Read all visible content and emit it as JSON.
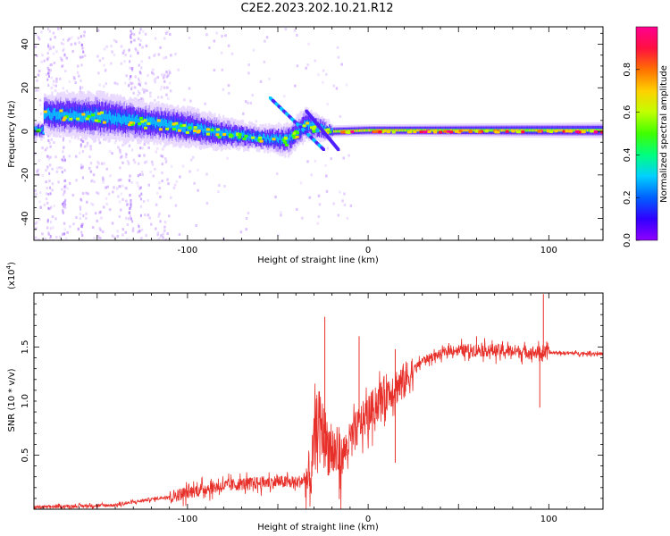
{
  "title": "C2E2.2023.202.10.21.R12",
  "chart_data": [
    {
      "type": "heatmap",
      "name": "spectrogram",
      "xlabel": "Height of straight line (km)",
      "ylabel": "Frequency (Hz)",
      "xlim": [
        -185,
        130
      ],
      "ylim": [
        -50,
        48
      ],
      "xticks": [
        -100,
        0,
        100
      ],
      "yticks": [
        -40,
        -20,
        0,
        20,
        40
      ],
      "colorbar": {
        "label": "Normalized spectral amplitude",
        "range": [
          0,
          1
        ],
        "ticks": [
          "0.0",
          "0.2",
          "0.4",
          "0.6",
          "0.8"
        ],
        "tick_values": [
          0,
          0.2,
          0.4,
          0.6,
          0.8
        ],
        "colors": [
          "#9000ff",
          "#3000ff",
          "#0060ff",
          "#00d0ff",
          "#00ff80",
          "#40ff00",
          "#c0ff00",
          "#ffd000",
          "#ff7000",
          "#ff1040",
          "#ff0090"
        ]
      },
      "band": {
        "description_points_km_hz_halfwidth": [
          [
            -180,
            8,
            5
          ],
          [
            -150,
            7,
            6
          ],
          [
            -120,
            4,
            5
          ],
          [
            -100,
            2,
            5
          ],
          [
            -80,
            -1,
            4
          ],
          [
            -60,
            -3,
            3
          ],
          [
            -45,
            -4,
            4
          ],
          [
            -35,
            3,
            4
          ],
          [
            -25,
            1,
            3
          ],
          [
            -20,
            0,
            1.5
          ],
          [
            0,
            0.5,
            1.5
          ],
          [
            130,
            0.5,
            2
          ]
        ]
      }
    },
    {
      "type": "line",
      "name": "snr",
      "xlabel": "Height of straight line (km)",
      "ylabel": "SNR (10 * v/v)",
      "multiplier": "(x10",
      "multiplier_exp": "4",
      "multiplier_close": ")",
      "xlim": [
        -185,
        130
      ],
      "ylim": [
        0,
        2.0
      ],
      "xticks": [
        -100,
        0,
        100
      ],
      "yticks": [
        0.5,
        1.0,
        1.5
      ],
      "ytick_labels": [
        "0.5",
        "1.0",
        "1.5"
      ],
      "color": "#e8302a",
      "trend_points": [
        [
          -185,
          0.02
        ],
        [
          -140,
          0.04
        ],
        [
          -110,
          0.12
        ],
        [
          -90,
          0.2
        ],
        [
          -70,
          0.24
        ],
        [
          -50,
          0.26
        ],
        [
          -40,
          0.25
        ],
        [
          -32,
          0.3
        ],
        [
          -28,
          0.9
        ],
        [
          -22,
          0.6
        ],
        [
          -15,
          0.5
        ],
        [
          -5,
          0.8
        ],
        [
          10,
          1.1
        ],
        [
          20,
          1.2
        ],
        [
          30,
          1.38
        ],
        [
          45,
          1.47
        ],
        [
          60,
          1.48
        ],
        [
          80,
          1.47
        ],
        [
          100,
          1.45
        ],
        [
          130,
          1.44
        ]
      ],
      "peaks": [
        [
          -24,
          1.78
        ],
        [
          -5,
          1.6
        ],
        [
          15,
          1.48
        ],
        [
          97,
          1.99
        ],
        [
          60,
          1.6
        ],
        [
          95,
          0.94
        ],
        [
          15,
          0.43
        ]
      ]
    }
  ]
}
